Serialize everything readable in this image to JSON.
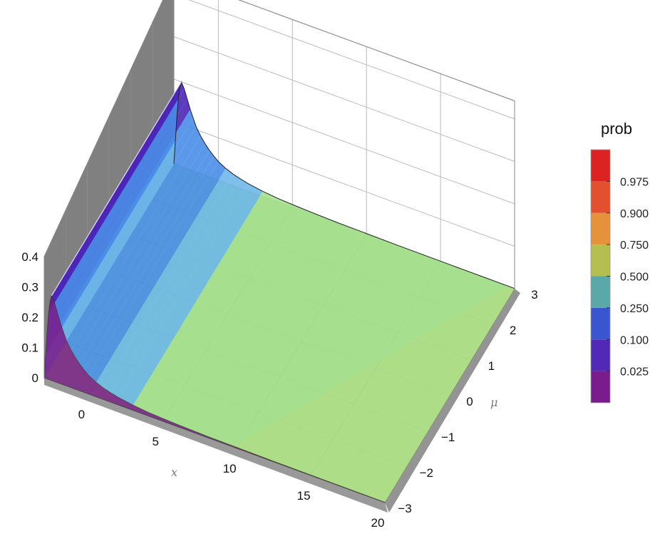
{
  "chart_data": {
    "type": "surface3d",
    "xlabel": "x",
    "ylabel": "μ",
    "xlim": [
      -3,
      20
    ],
    "ylim": [
      -3,
      3
    ],
    "zlim": [
      0,
      0.4
    ],
    "x_ticks": [
      "0",
      "5",
      "10",
      "15",
      "20"
    ],
    "y_ticks": [
      "−3",
      "−2",
      "−1",
      "0",
      "1",
      "2",
      "3"
    ],
    "z_ticks": [
      "0",
      "0.1",
      "0.2",
      "0.3",
      "0.4"
    ],
    "z_tick_values": [
      0,
      0.1,
      0.2,
      0.3,
      0.4
    ],
    "x_tick_values": [
      0,
      5,
      10,
      15,
      20
    ],
    "y_tick_values": [
      -3,
      -2,
      -1,
      0,
      1,
      2,
      3
    ],
    "surface": {
      "x": [
        -3,
        -2.9,
        -2.8,
        -2.7,
        -2.6,
        -2.5,
        -2.3,
        -2.1,
        -1.9,
        -1.7,
        -1.5,
        -1.2,
        -0.9,
        -0.6,
        -0.3,
        0,
        0.5,
        1,
        1.5,
        2,
        3,
        4,
        5,
        6,
        8,
        10,
        12,
        14,
        16,
        18,
        20
      ],
      "z": [
        0,
        0.08,
        0.16,
        0.22,
        0.26,
        0.28,
        0.26,
        0.23,
        0.2,
        0.175,
        0.15,
        0.125,
        0.105,
        0.088,
        0.074,
        0.062,
        0.048,
        0.038,
        0.031,
        0.025,
        0.017,
        0.012,
        0.009,
        0.007,
        0.004,
        0.003,
        0.002,
        0.0015,
        0.001,
        0.0008,
        0.0006
      ]
    },
    "regions": [
      {
        "band": "0.025",
        "color": "#7a1a8a"
      },
      {
        "band": "0.100",
        "color": "#4a26b8"
      },
      {
        "band": "0.250",
        "color": "#4a8de8"
      },
      {
        "band": "0.750",
        "color": "#a6e08f"
      },
      {
        "band": "0.900",
        "color": "#f2be48"
      }
    ],
    "legend": {
      "title": "prob",
      "placement": "right",
      "colors": [
        "#7b1c8e",
        "#5228b8",
        "#3a55d0",
        "#5aa8a8",
        "#b4bf50",
        "#e6923a",
        "#e35030",
        "#dd2222"
      ],
      "labels": [
        "0.025",
        "0.100",
        "0.250",
        "0.500",
        "0.750",
        "0.900",
        "0.975"
      ]
    }
  }
}
